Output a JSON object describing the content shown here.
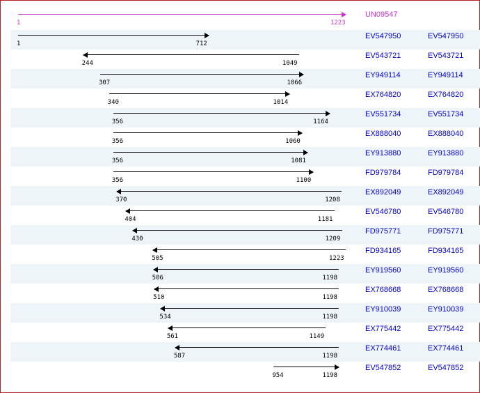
{
  "unigene": {
    "id": "UN09547",
    "start": 1,
    "end": 1223
  },
  "scale": {
    "min": 1,
    "max": 1223
  },
  "colors": {
    "unigene": "#cc33cc",
    "link": "#0000cc",
    "alt_row": "#eef5f9",
    "border": "#b22222"
  },
  "alignments": [
    {
      "id": "EV547950",
      "start": 1,
      "end": 712,
      "direction": "right"
    },
    {
      "id": "EV543721",
      "start": 244,
      "end": 1049,
      "direction": "left"
    },
    {
      "id": "EY949114",
      "start": 307,
      "end": 1066,
      "direction": "right"
    },
    {
      "id": "EX764820",
      "start": 340,
      "end": 1014,
      "direction": "right"
    },
    {
      "id": "EV551734",
      "start": 356,
      "end": 1164,
      "direction": "right"
    },
    {
      "id": "EX888040",
      "start": 356,
      "end": 1060,
      "direction": "right"
    },
    {
      "id": "EY913880",
      "start": 356,
      "end": 1081,
      "direction": "right"
    },
    {
      "id": "FD979784",
      "start": 356,
      "end": 1100,
      "direction": "right"
    },
    {
      "id": "EX892049",
      "start": 370,
      "end": 1208,
      "direction": "left"
    },
    {
      "id": "EV546780",
      "start": 404,
      "end": 1181,
      "direction": "left"
    },
    {
      "id": "FD975771",
      "start": 430,
      "end": 1209,
      "direction": "left"
    },
    {
      "id": "FD934165",
      "start": 505,
      "end": 1223,
      "direction": "left"
    },
    {
      "id": "EY919560",
      "start": 506,
      "end": 1198,
      "direction": "left"
    },
    {
      "id": "EX768668",
      "start": 510,
      "end": 1198,
      "direction": "left"
    },
    {
      "id": "EY910039",
      "start": 534,
      "end": 1198,
      "direction": "left"
    },
    {
      "id": "EX775442",
      "start": 561,
      "end": 1149,
      "direction": "left"
    },
    {
      "id": "EX774461",
      "start": 587,
      "end": 1198,
      "direction": "left"
    },
    {
      "id": "EV547852",
      "start": 954,
      "end": 1198,
      "direction": "right"
    }
  ]
}
